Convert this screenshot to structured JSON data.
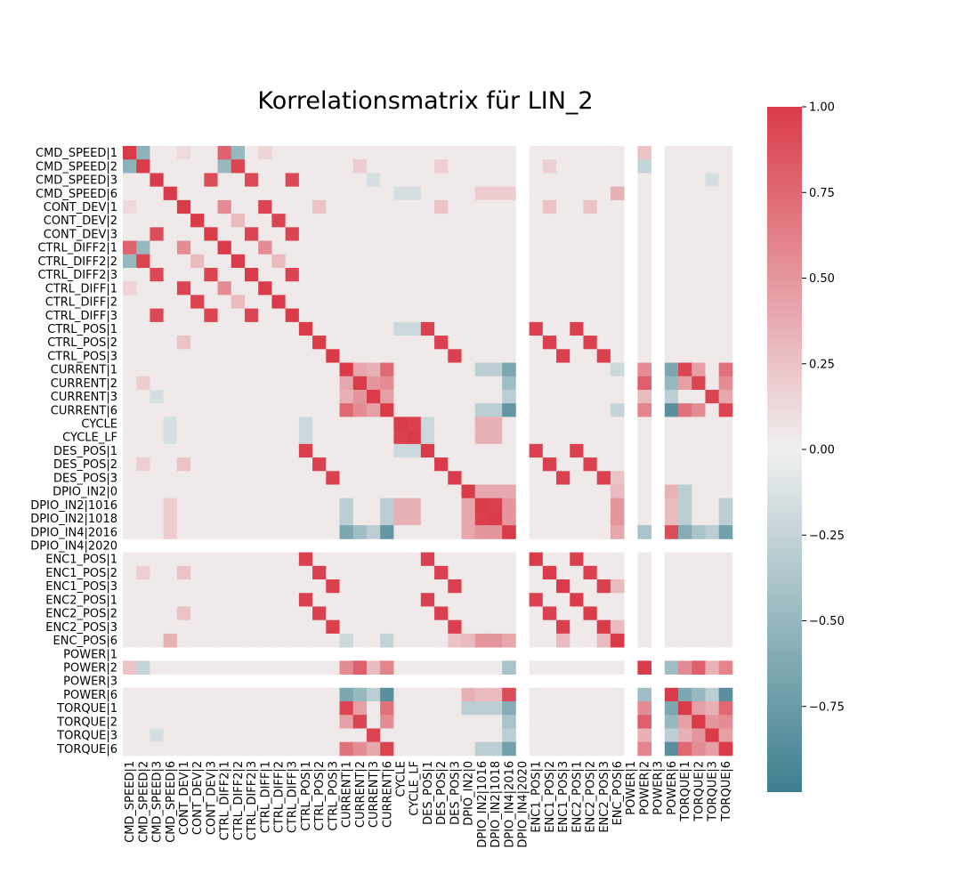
{
  "chart_data": {
    "type": "heatmap",
    "title": "Korrelationsmatrix für LIN_2",
    "labels": [
      "CMD_SPEED|1",
      "CMD_SPEED|2",
      "CMD_SPEED|3",
      "CMD_SPEED|6",
      "CONT_DEV|1",
      "CONT_DEV|2",
      "CONT_DEV|3",
      "CTRL_DIFF2|1",
      "CTRL_DIFF2|2",
      "CTRL_DIFF2|3",
      "CTRL_DIFF|1",
      "CTRL_DIFF|2",
      "CTRL_DIFF|3",
      "CTRL_POS|1",
      "CTRL_POS|2",
      "CTRL_POS|3",
      "CURRENT|1",
      "CURRENT|2",
      "CURRENT|3",
      "CURRENT|6",
      "CYCLE",
      "CYCLE_LF",
      "DES_POS|1",
      "DES_POS|2",
      "DES_POS|3",
      "DPIO_IN2|0",
      "DPIO_IN2|1016",
      "DPIO_IN2|1018",
      "DPIO_IN4|2016",
      "DPIO_IN4|2020",
      "ENC1_POS|1",
      "ENC1_POS|2",
      "ENC1_POS|3",
      "ENC2_POS|1",
      "ENC2_POS|2",
      "ENC2_POS|3",
      "ENC_POS|6",
      "POWER|1",
      "POWER|2",
      "POWER|3",
      "POWER|6",
      "TORQUE|1",
      "TORQUE|2",
      "TORQUE|3",
      "TORQUE|6"
    ],
    "missing": [
      "DPIO_IN4|2020",
      "POWER|1",
      "POWER|3"
    ],
    "vmin": -1.0,
    "vmax": 1.0,
    "colorbar_ticks": [
      1.0,
      0.75,
      0.5,
      0.25,
      0.0,
      -0.25,
      -0.5,
      -0.75
    ],
    "colorbar_tick_labels": [
      "1.00",
      "0.75",
      "0.50",
      "0.25",
      "0.00",
      "−0.25",
      "−0.50",
      "−0.75"
    ],
    "colorbar_bottom": -1.0,
    "colors": {
      "low": "#3d7f8e",
      "mid": "#f0f0f0",
      "high": "#da3b49"
    },
    "default_offdiag": 0.04,
    "correlations": [
      [
        "CMD_SPEED|1",
        "CMD_SPEED|2",
        -0.55
      ],
      [
        "CMD_SPEED|1",
        "CTRL_DIFF2|1",
        0.78
      ],
      [
        "CMD_SPEED|1",
        "CTRL_DIFF2|2",
        -0.5
      ],
      [
        "CMD_SPEED|1",
        "CONT_DEV|1",
        0.12
      ],
      [
        "CMD_SPEED|1",
        "CTRL_DIFF|1",
        0.15
      ],
      [
        "CMD_SPEED|1",
        "POWER|2",
        0.25
      ],
      [
        "CMD_SPEED|2",
        "CTRL_DIFF2|1",
        -0.5
      ],
      [
        "CMD_SPEED|2",
        "CTRL_DIFF2|2",
        0.95
      ],
      [
        "CMD_SPEED|2",
        "CURRENT|2",
        0.2
      ],
      [
        "CMD_SPEED|2",
        "POWER|2",
        -0.25
      ],
      [
        "CMD_SPEED|2",
        "DES_POS|2",
        0.18
      ],
      [
        "CMD_SPEED|2",
        "ENC1_POS|2",
        0.18
      ],
      [
        "CMD_SPEED|3",
        "CONT_DEV|3",
        0.9
      ],
      [
        "CMD_SPEED|3",
        "CTRL_DIFF2|3",
        0.92
      ],
      [
        "CMD_SPEED|3",
        "CTRL_DIFF|3",
        0.92
      ],
      [
        "CMD_SPEED|3",
        "CURRENT|3",
        -0.15
      ],
      [
        "CMD_SPEED|3",
        "TORQUE|3",
        -0.15
      ],
      [
        "CMD_SPEED|6",
        "ENC_POS|6",
        0.35
      ],
      [
        "CMD_SPEED|6",
        "CYCLE",
        -0.15
      ],
      [
        "CMD_SPEED|6",
        "CYCLE_LF",
        -0.15
      ],
      [
        "CMD_SPEED|6",
        "DPIO_IN2|1016",
        0.2
      ],
      [
        "CMD_SPEED|6",
        "DPIO_IN2|1018",
        0.2
      ],
      [
        "CMD_SPEED|6",
        "DPIO_IN4|2016",
        0.2
      ],
      [
        "CONT_DEV|1",
        "CTRL_DIFF|1",
        0.95
      ],
      [
        "CONT_DEV|1",
        "CTRL_DIFF2|1",
        0.55
      ],
      [
        "CONT_DEV|1",
        "CTRL_POS|2",
        0.25
      ],
      [
        "CONT_DEV|1",
        "DES_POS|2",
        0.25
      ],
      [
        "CONT_DEV|1",
        "ENC1_POS|2",
        0.25
      ],
      [
        "CONT_DEV|1",
        "ENC2_POS|2",
        0.25
      ],
      [
        "CONT_DEV|2",
        "CTRL_DIFF|2",
        0.95
      ],
      [
        "CONT_DEV|2",
        "CTRL_DIFF2|2",
        0.3
      ],
      [
        "CONT_DEV|3",
        "CTRL_DIFF|3",
        0.95
      ],
      [
        "CONT_DEV|3",
        "CTRL_DIFF2|3",
        0.95
      ],
      [
        "CTRL_DIFF2|1",
        "CTRL_DIFF|1",
        0.55
      ],
      [
        "CTRL_DIFF2|2",
        "CTRL_DIFF|2",
        0.3
      ],
      [
        "CTRL_DIFF2|3",
        "CTRL_DIFF|3",
        0.95
      ],
      [
        "CTRL_POS|1",
        "DES_POS|1",
        0.97
      ],
      [
        "CTRL_POS|1",
        "ENC1_POS|1",
        0.97
      ],
      [
        "CTRL_POS|1",
        "ENC2_POS|1",
        0.97
      ],
      [
        "CTRL_POS|1",
        "CYCLE",
        -0.2
      ],
      [
        "CTRL_POS|1",
        "CYCLE_LF",
        -0.2
      ],
      [
        "CTRL_POS|2",
        "DES_POS|2",
        0.97
      ],
      [
        "CTRL_POS|2",
        "ENC1_POS|2",
        0.97
      ],
      [
        "CTRL_POS|2",
        "ENC2_POS|2",
        0.97
      ],
      [
        "CTRL_POS|3",
        "DES_POS|3",
        0.97
      ],
      [
        "CTRL_POS|3",
        "ENC1_POS|3",
        0.97
      ],
      [
        "CTRL_POS|3",
        "ENC2_POS|3",
        0.97
      ],
      [
        "DES_POS|1",
        "ENC1_POS|1",
        0.97
      ],
      [
        "DES_POS|1",
        "ENC2_POS|1",
        0.97
      ],
      [
        "DES_POS|2",
        "ENC1_POS|2",
        0.97
      ],
      [
        "DES_POS|2",
        "ENC2_POS|2",
        0.97
      ],
      [
        "DES_POS|3",
        "ENC1_POS|3",
        0.97
      ],
      [
        "DES_POS|3",
        "ENC2_POS|3",
        0.97
      ],
      [
        "ENC1_POS|1",
        "ENC2_POS|1",
        0.97
      ],
      [
        "ENC1_POS|2",
        "ENC2_POS|2",
        0.97
      ],
      [
        "ENC1_POS|3",
        "ENC2_POS|3",
        0.97
      ],
      [
        "CURRENT|1",
        "CURRENT|2",
        0.4
      ],
      [
        "CURRENT|1",
        "CURRENT|3",
        0.35
      ],
      [
        "CURRENT|1",
        "CURRENT|6",
        0.75
      ],
      [
        "CURRENT|2",
        "CURRENT|3",
        0.5
      ],
      [
        "CURRENT|2",
        "CURRENT|6",
        0.55
      ],
      [
        "CURRENT|3",
        "CURRENT|6",
        0.45
      ],
      [
        "CURRENT|1",
        "TORQUE|1",
        0.95
      ],
      [
        "CURRENT|2",
        "TORQUE|2",
        0.95
      ],
      [
        "CURRENT|3",
        "TORQUE|3",
        0.95
      ],
      [
        "CURRENT|6",
        "TORQUE|6",
        0.95
      ],
      [
        "CURRENT|1",
        "TORQUE|2",
        0.45
      ],
      [
        "CURRENT|1",
        "TORQUE|6",
        0.7
      ],
      [
        "CURRENT|2",
        "TORQUE|1",
        0.45
      ],
      [
        "CURRENT|2",
        "TORQUE|6",
        0.55
      ],
      [
        "CURRENT|6",
        "TORQUE|1",
        0.7
      ],
      [
        "CURRENT|6",
        "TORQUE|2",
        0.55
      ],
      [
        "CURRENT|3",
        "TORQUE|6",
        0.4
      ],
      [
        "CURRENT|1",
        "POWER|2",
        0.55
      ],
      [
        "CURRENT|2",
        "POWER|2",
        0.8
      ],
      [
        "CURRENT|3",
        "POWER|2",
        0.3
      ],
      [
        "CURRENT|6",
        "POWER|2",
        0.6
      ],
      [
        "CURRENT|1",
        "POWER|6",
        -0.65
      ],
      [
        "CURRENT|2",
        "POWER|6",
        -0.5
      ],
      [
        "CURRENT|3",
        "POWER|6",
        -0.3
      ],
      [
        "CURRENT|6",
        "POWER|6",
        -0.85
      ],
      [
        "CURRENT|1",
        "DPIO_IN4|2016",
        -0.65
      ],
      [
        "CURRENT|2",
        "DPIO_IN4|2016",
        -0.45
      ],
      [
        "CURRENT|3",
        "DPIO_IN4|2016",
        -0.3
      ],
      [
        "CURRENT|6",
        "DPIO_IN4|2016",
        -0.8
      ],
      [
        "CURRENT|1",
        "DPIO_IN2|1016",
        -0.3
      ],
      [
        "CURRENT|1",
        "DPIO_IN2|1018",
        -0.3
      ],
      [
        "CURRENT|6",
        "DPIO_IN2|1016",
        -0.3
      ],
      [
        "CURRENT|6",
        "DPIO_IN2|1018",
        -0.3
      ],
      [
        "CURRENT|1",
        "ENC_POS|6",
        -0.2
      ],
      [
        "CURRENT|6",
        "ENC_POS|6",
        -0.25
      ],
      [
        "CYCLE",
        "CYCLE_LF",
        0.97
      ],
      [
        "CYCLE",
        "DPIO_IN2|1016",
        0.35
      ],
      [
        "CYCLE",
        "DPIO_IN2|1018",
        0.35
      ],
      [
        "CYCLE_LF",
        "DPIO_IN2|1016",
        0.35
      ],
      [
        "CYCLE_LF",
        "DPIO_IN2|1018",
        0.35
      ],
      [
        "CYCLE",
        "DES_POS|1",
        -0.2
      ],
      [
        "CYCLE_LF",
        "DES_POS|1",
        -0.2
      ],
      [
        "DPIO_IN2|0",
        "DPIO_IN2|1016",
        0.4
      ],
      [
        "DPIO_IN2|0",
        "DPIO_IN2|1018",
        0.4
      ],
      [
        "DPIO_IN2|0",
        "DPIO_IN4|2016",
        0.4
      ],
      [
        "DPIO_IN2|1016",
        "DPIO_IN2|1018",
        0.97
      ],
      [
        "DPIO_IN2|1016",
        "DPIO_IN4|2016",
        0.5
      ],
      [
        "DPIO_IN2|1018",
        "DPIO_IN4|2016",
        0.5
      ],
      [
        "DPIO_IN2|0",
        "ENC_POS|6",
        0.3
      ],
      [
        "DPIO_IN2|1016",
        "ENC_POS|6",
        0.5
      ],
      [
        "DPIO_IN2|1018",
        "ENC_POS|6",
        0.5
      ],
      [
        "DPIO_IN4|2016",
        "ENC_POS|6",
        0.4
      ],
      [
        "DPIO_IN2|0",
        "POWER|6",
        0.35
      ],
      [
        "DPIO_IN2|1016",
        "POWER|6",
        0.3
      ],
      [
        "DPIO_IN2|1018",
        "POWER|6",
        0.3
      ],
      [
        "DPIO_IN4|2016",
        "POWER|6",
        0.9
      ],
      [
        "DPIO_IN4|2016",
        "POWER|2",
        -0.4
      ],
      [
        "DPIO_IN4|2016",
        "TORQUE|1",
        -0.6
      ],
      [
        "DPIO_IN4|2016",
        "TORQUE|2",
        -0.4
      ],
      [
        "DPIO_IN4|2016",
        "TORQUE|3",
        -0.3
      ],
      [
        "DPIO_IN4|2016",
        "TORQUE|6",
        -0.7
      ],
      [
        "DPIO_IN2|0",
        "TORQUE|1",
        -0.3
      ],
      [
        "DPIO_IN2|1016",
        "TORQUE|1",
        -0.3
      ],
      [
        "DPIO_IN2|1018",
        "TORQUE|1",
        -0.3
      ],
      [
        "DPIO_IN2|1016",
        "TORQUE|6",
        -0.3
      ],
      [
        "DPIO_IN2|1018",
        "TORQUE|6",
        -0.3
      ],
      [
        "ENC_POS|6",
        "DES_POS|3",
        0.25
      ],
      [
        "ENC_POS|6",
        "ENC1_POS|3",
        0.3
      ],
      [
        "ENC_POS|6",
        "ENC2_POS|3",
        0.3
      ],
      [
        "POWER|2",
        "POWER|6",
        -0.45
      ],
      [
        "POWER|2",
        "TORQUE|1",
        0.55
      ],
      [
        "POWER|2",
        "TORQUE|2",
        0.8
      ],
      [
        "POWER|2",
        "TORQUE|3",
        0.35
      ],
      [
        "POWER|2",
        "TORQUE|6",
        0.6
      ],
      [
        "POWER|6",
        "TORQUE|1",
        -0.65
      ],
      [
        "POWER|6",
        "TORQUE|2",
        -0.5
      ],
      [
        "POWER|6",
        "TORQUE|3",
        -0.3
      ],
      [
        "POWER|6",
        "TORQUE|6",
        -0.85
      ],
      [
        "TORQUE|1",
        "TORQUE|2",
        0.45
      ],
      [
        "TORQUE|1",
        "TORQUE|3",
        0.35
      ],
      [
        "TORQUE|1",
        "TORQUE|6",
        0.75
      ],
      [
        "TORQUE|2",
        "TORQUE|3",
        0.5
      ],
      [
        "TORQUE|2",
        "TORQUE|6",
        0.55
      ],
      [
        "TORQUE|3",
        "TORQUE|6",
        0.45
      ]
    ]
  }
}
